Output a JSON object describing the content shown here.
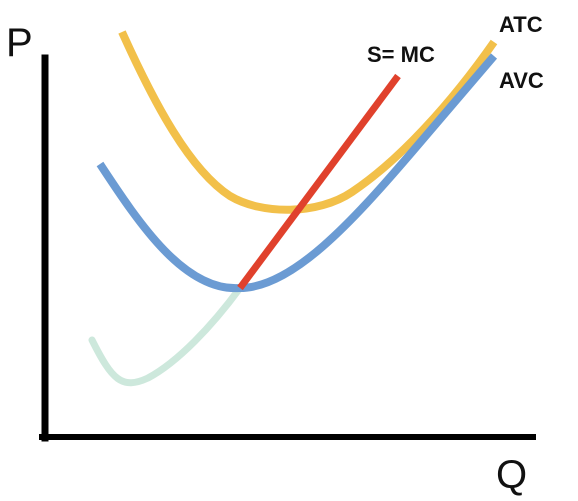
{
  "axes": {
    "y_label": "P",
    "x_label": "Q"
  },
  "curves": {
    "atc": {
      "label": "ATC",
      "color": "#f2c04a"
    },
    "avc": {
      "label": "AVC",
      "color": "#6b9bd3"
    },
    "mc_supply": {
      "label": "S= MC",
      "color": "#e0412c"
    },
    "mc_below_shutdown": {
      "label": "",
      "color": "#cde8dc"
    }
  },
  "axis_color": "#000000"
}
